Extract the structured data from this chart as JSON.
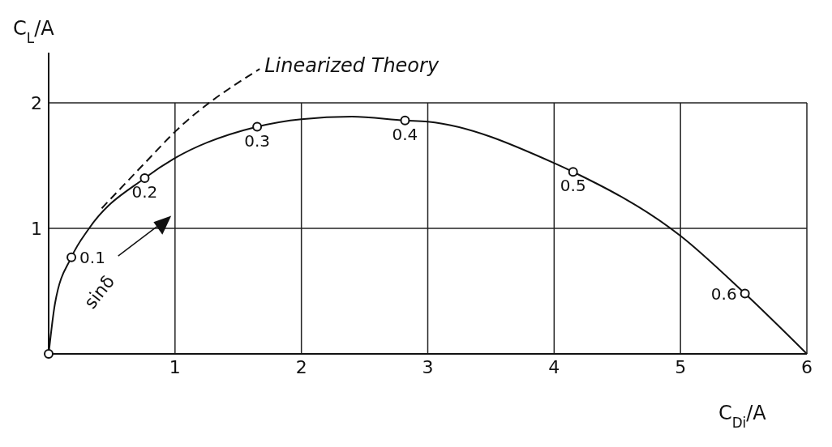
{
  "chart_data": {
    "type": "line",
    "xlabel": "C$_{Di}$/A",
    "ylabel": "C$_{L}$/A",
    "xlim": [
      0,
      6
    ],
    "ylim": [
      0,
      2.4
    ],
    "xticks": [
      1,
      2,
      3,
      4,
      5,
      6
    ],
    "yticks": [
      1,
      2
    ],
    "grid": true,
    "legend": false,
    "marker": "none",
    "line_style": "solid",
    "series": [
      {
        "type": "line",
        "color": "#111111",
        "x": [
          0,
          0.05,
          0.18,
          0.32,
          0.76,
          1.0,
          1.65,
          2.0,
          2.4,
          2.82,
          3.0,
          4.0,
          4.15,
          5.0,
          5.51,
          6.0
        ],
        "values": [
          0,
          0.4,
          0.77,
          1.0,
          1.4,
          1.56,
          1.81,
          1.87,
          1.89,
          1.86,
          1.85,
          1.52,
          1.45,
          0.94,
          0.48,
          0
        ]
      },
      {
        "type": "line",
        "name": "Linearized Theory",
        "color": "#111111",
        "line_style": "dashed",
        "x": [
          0.42,
          0.77,
          1.0,
          1.67
        ],
        "values": [
          1.16,
          1.53,
          1.77,
          2.27
        ]
      },
      {
        "type": "scatter",
        "color": "#111111",
        "marker": "circle",
        "x": [
          0,
          0.18,
          0.76,
          1.65,
          2.82,
          4.15,
          5.51
        ],
        "values": [
          0,
          0.77,
          1.4,
          1.81,
          1.86,
          1.45,
          0.48
        ]
      }
    ],
    "annotations": [
      {
        "text": "0.1",
        "x": 0.18,
        "y": 0.77
      },
      {
        "text": "0.2",
        "x": 0.76,
        "y": 1.4
      },
      {
        "text": "0.3",
        "x": 1.65,
        "y": 1.81
      },
      {
        "text": "0.4",
        "x": 2.82,
        "y": 1.86
      },
      {
        "text": "0.5",
        "x": 4.15,
        "y": 1.45
      },
      {
        "text": "0.6",
        "x": 5.51,
        "y": 0.48
      },
      "sinδ"
    ]
  }
}
